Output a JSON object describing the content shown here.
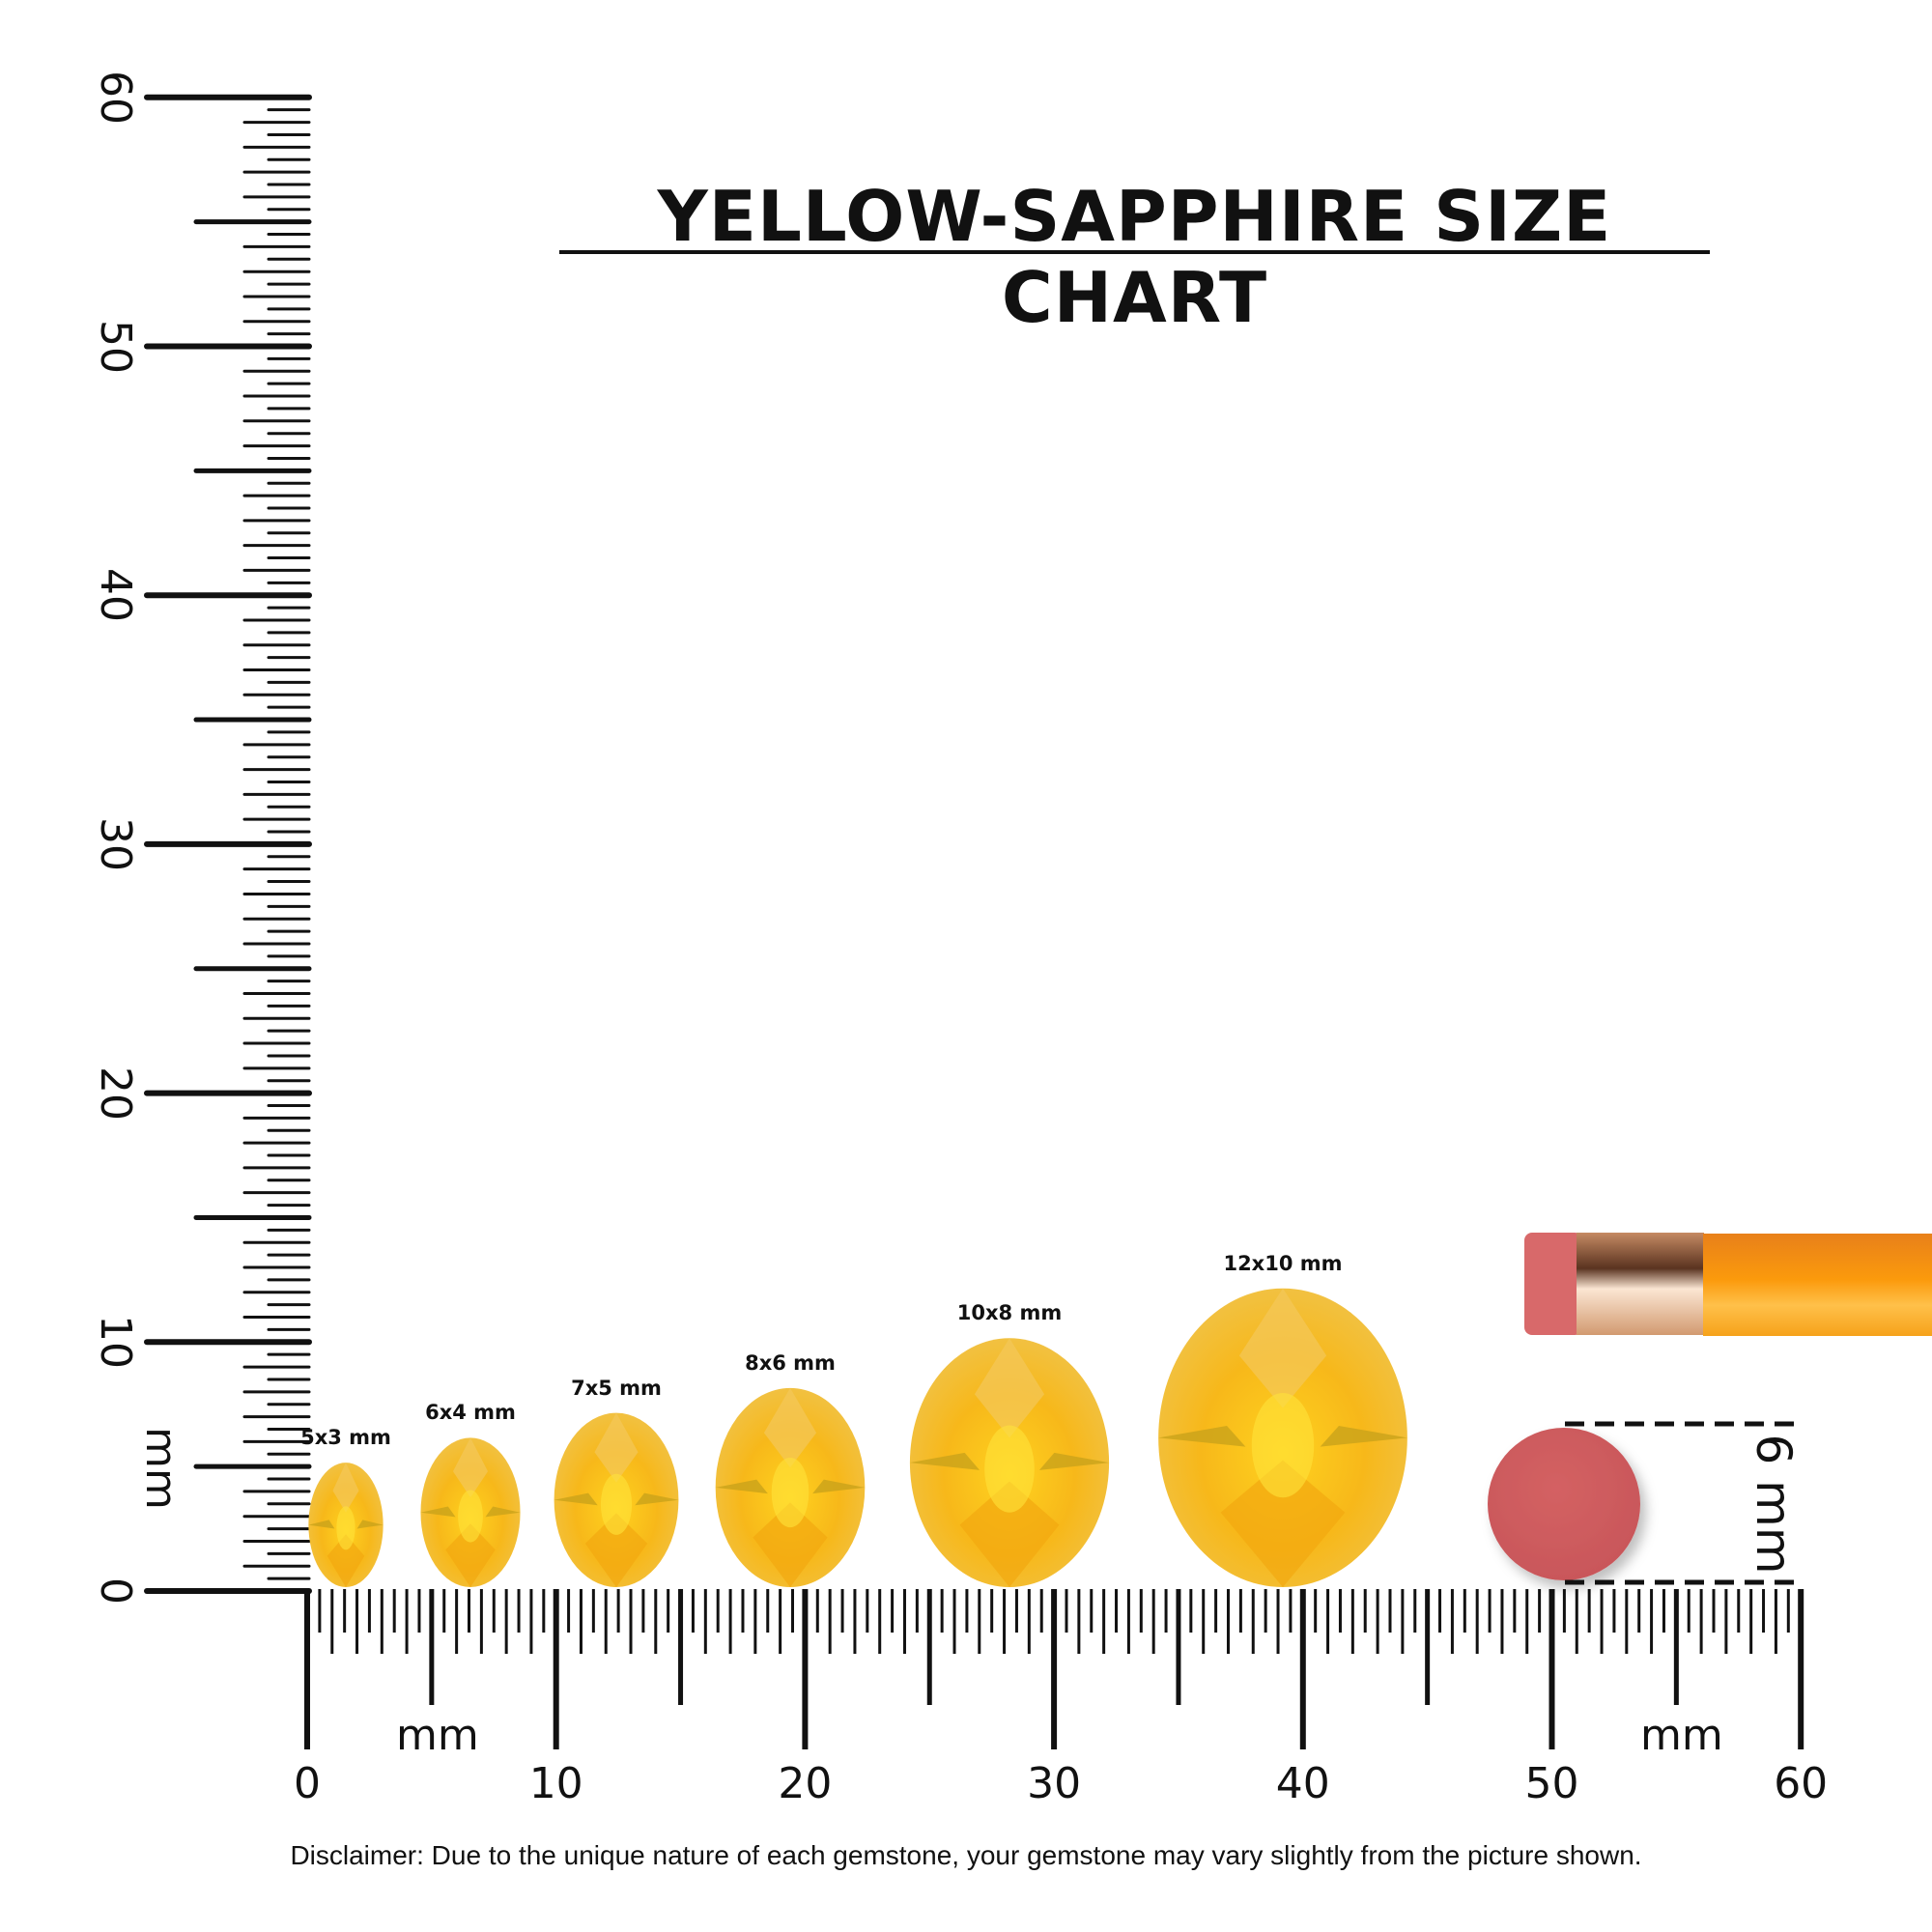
{
  "title": "YELLOW-SAPPHIRE SIZE CHART",
  "vertical_ruler": {
    "unit": "mm",
    "labels": [
      "0",
      "10",
      "20",
      "30",
      "40",
      "50",
      "60"
    ]
  },
  "horizontal_ruler": {
    "unit": "mm",
    "unit_right": "mm",
    "labels": [
      "0",
      "10",
      "20",
      "30",
      "40",
      "50",
      "60"
    ]
  },
  "gems": [
    {
      "label": "5x3 mm",
      "length_mm": 5,
      "width_mm": 3
    },
    {
      "label": "6x4 mm",
      "length_mm": 6,
      "width_mm": 4
    },
    {
      "label": "7x5 mm",
      "length_mm": 7,
      "width_mm": 5
    },
    {
      "label": "8x6 mm",
      "length_mm": 8,
      "width_mm": 6
    },
    {
      "label": "10x8 mm",
      "length_mm": 10,
      "width_mm": 8
    },
    {
      "label": "12x10 mm",
      "length_mm": 12,
      "width_mm": 10
    }
  ],
  "eraser_reference": {
    "label": "6 mm",
    "diameter_mm": 6
  },
  "colors": {
    "gem": "#f5b516",
    "gem_light": "#ffe066",
    "eraser": "#d05a5b",
    "pencil": "#f7930f",
    "ferrule": "#d9a27a",
    "ink": "#111111"
  },
  "disclaimer": "Disclaimer: Due to the unique nature of each gemstone, your gemstone may vary slightly from the picture shown."
}
